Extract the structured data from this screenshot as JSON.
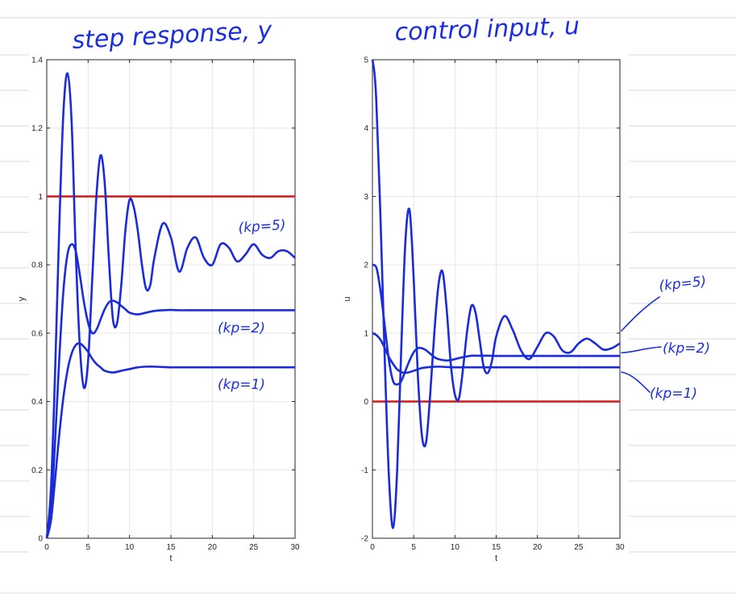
{
  "handwritten": {
    "left_title": "step response, y",
    "right_title": "control input, u",
    "left_annotations": [
      "(kp=5)",
      "(kp=2)",
      "(kp=1)"
    ],
    "right_annotations": [
      "(kp=5)",
      "(kp=2)",
      "(kp=1)"
    ]
  },
  "chart_data": [
    {
      "type": "line",
      "title": "step response, y",
      "xlabel": "t",
      "ylabel": "y",
      "xlim": [
        0,
        30
      ],
      "ylim": [
        0,
        1.4
      ],
      "xticks": [
        0,
        5,
        10,
        15,
        20,
        25,
        30
      ],
      "yticks": [
        0,
        0.2,
        0.4,
        0.6,
        0.8,
        1,
        1.2,
        1.4
      ],
      "xtick_labels": [
        "0",
        "5",
        "10",
        "15",
        "20",
        "25",
        "30"
      ],
      "ytick_labels": [
        "0",
        "0.2",
        "0.4",
        "0.6",
        "0.8",
        "1",
        "1.2",
        "1.4"
      ],
      "grid": true,
      "colors": {
        "series": "#1a2bd9",
        "reference": "#d62020"
      },
      "reference": {
        "y": 1
      },
      "series": [
        {
          "name": "kp=5",
          "x": [
            0,
            0.5,
            1,
            1.5,
            2,
            2.5,
            3,
            3.5,
            4,
            4.5,
            5,
            5.5,
            6,
            6.5,
            7,
            7.5,
            8,
            8.5,
            9,
            9.5,
            10,
            10.5,
            11,
            11.5,
            12,
            12.5,
            13,
            14,
            15,
            16,
            17,
            18,
            19,
            20,
            21,
            22,
            23,
            24,
            25,
            26,
            27,
            28,
            29,
            30
          ],
          "y": [
            0,
            0.14,
            0.48,
            0.9,
            1.24,
            1.36,
            1.22,
            0.84,
            0.56,
            0.44,
            0.52,
            0.76,
            1.0,
            1.12,
            1.04,
            0.82,
            0.64,
            0.63,
            0.74,
            0.9,
            0.99,
            0.97,
            0.9,
            0.8,
            0.73,
            0.74,
            0.82,
            0.92,
            0.88,
            0.78,
            0.85,
            0.88,
            0.82,
            0.8,
            0.86,
            0.85,
            0.81,
            0.83,
            0.86,
            0.83,
            0.82,
            0.84,
            0.84,
            0.82
          ]
        },
        {
          "name": "kp=2",
          "x": [
            0,
            0.5,
            1,
            1.5,
            2,
            2.5,
            3,
            3.5,
            4,
            4.5,
            5,
            5.5,
            6,
            6.5,
            7,
            7.5,
            8,
            8.5,
            9,
            9.5,
            10,
            11,
            12,
            13,
            14,
            15,
            16,
            17,
            18,
            20,
            22,
            24,
            26,
            28,
            30
          ],
          "y": [
            0,
            0.08,
            0.28,
            0.52,
            0.72,
            0.83,
            0.86,
            0.84,
            0.77,
            0.69,
            0.63,
            0.6,
            0.61,
            0.64,
            0.67,
            0.69,
            0.695,
            0.69,
            0.68,
            0.67,
            0.66,
            0.655,
            0.66,
            0.665,
            0.667,
            0.668,
            0.667,
            0.667,
            0.667,
            0.667,
            0.667,
            0.667,
            0.667,
            0.667,
            0.667
          ]
        },
        {
          "name": "kp=1",
          "x": [
            0,
            0.5,
            1,
            1.5,
            2,
            2.5,
            3,
            3.5,
            4,
            4.5,
            5,
            5.5,
            6,
            6.5,
            7,
            8,
            9,
            10,
            11,
            12,
            13,
            14,
            15,
            16,
            18,
            20,
            22,
            24,
            26,
            28,
            30
          ],
          "y": [
            0,
            0.05,
            0.17,
            0.3,
            0.41,
            0.49,
            0.54,
            0.565,
            0.57,
            0.56,
            0.545,
            0.525,
            0.51,
            0.5,
            0.49,
            0.485,
            0.49,
            0.495,
            0.5,
            0.502,
            0.502,
            0.501,
            0.5,
            0.5,
            0.5,
            0.5,
            0.5,
            0.5,
            0.5,
            0.5,
            0.5
          ]
        }
      ]
    },
    {
      "type": "line",
      "title": "control input, u",
      "xlabel": "t",
      "ylabel": "u",
      "xlim": [
        0,
        30
      ],
      "ylim": [
        -2,
        5
      ],
      "xticks": [
        0,
        5,
        10,
        15,
        20,
        25,
        30
      ],
      "yticks": [
        -2,
        -1,
        0,
        1,
        2,
        3,
        4,
        5
      ],
      "xtick_labels": [
        "0",
        "5",
        "10",
        "15",
        "20",
        "25",
        "30"
      ],
      "ytick_labels": [
        "-2",
        "-1",
        "0",
        "1",
        "2",
        "3",
        "4",
        "5"
      ],
      "grid": true,
      "colors": {
        "series": "#1a2bd9",
        "reference": "#d62020"
      },
      "reference": {
        "y": 0
      },
      "series": [
        {
          "name": "kp=5",
          "x": [
            0,
            0.25,
            0.5,
            1,
            1.5,
            2,
            2.5,
            3,
            3.5,
            4,
            4.5,
            5,
            5.5,
            6,
            6.5,
            7,
            7.5,
            8,
            8.5,
            9,
            9.5,
            10,
            10.5,
            11,
            11.5,
            12,
            12.5,
            13,
            13.5,
            14,
            14.5,
            15,
            16,
            17,
            18,
            19,
            20,
            21,
            22,
            23,
            24,
            25,
            26,
            27,
            28,
            29,
            30
          ],
          "y": [
            5,
            4.8,
            4.3,
            2.6,
            0.6,
            -1.1,
            -1.85,
            -1.0,
            0.8,
            2.35,
            2.8,
            1.8,
            0.4,
            -0.5,
            -0.6,
            0.1,
            1.0,
            1.7,
            1.9,
            1.35,
            0.55,
            0.1,
            0.05,
            0.5,
            1.05,
            1.4,
            1.3,
            0.9,
            0.5,
            0.42,
            0.6,
            0.95,
            1.25,
            1.05,
            0.75,
            0.62,
            0.8,
            1.0,
            0.95,
            0.75,
            0.72,
            0.85,
            0.92,
            0.85,
            0.76,
            0.78,
            0.85
          ]
        },
        {
          "name": "kp=2",
          "x": [
            0,
            0.5,
            1,
            1.5,
            2,
            2.5,
            3,
            3.5,
            4,
            4.5,
            5,
            5.5,
            6,
            6.5,
            7,
            7.5,
            8,
            9,
            10,
            11,
            12,
            13,
            14,
            15,
            16,
            18,
            20,
            22,
            24,
            26,
            28,
            30
          ],
          "y": [
            2,
            1.95,
            1.6,
            1.1,
            0.6,
            0.3,
            0.25,
            0.3,
            0.45,
            0.6,
            0.72,
            0.78,
            0.78,
            0.75,
            0.7,
            0.65,
            0.62,
            0.6,
            0.62,
            0.65,
            0.67,
            0.67,
            0.67,
            0.667,
            0.667,
            0.667,
            0.667,
            0.667,
            0.667,
            0.667,
            0.667,
            0.667
          ]
        },
        {
          "name": "kp=1",
          "x": [
            0,
            0.5,
            1,
            1.5,
            2,
            2.5,
            3,
            3.5,
            4,
            4.5,
            5,
            5.5,
            6,
            7,
            8,
            9,
            10,
            11,
            12,
            14,
            16,
            18,
            20,
            22,
            24,
            26,
            28,
            30
          ],
          "y": [
            1,
            0.97,
            0.9,
            0.78,
            0.65,
            0.55,
            0.47,
            0.43,
            0.42,
            0.43,
            0.45,
            0.47,
            0.49,
            0.505,
            0.51,
            0.505,
            0.5,
            0.5,
            0.5,
            0.5,
            0.5,
            0.5,
            0.5,
            0.5,
            0.5,
            0.5,
            0.5,
            0.5
          ]
        }
      ]
    }
  ]
}
